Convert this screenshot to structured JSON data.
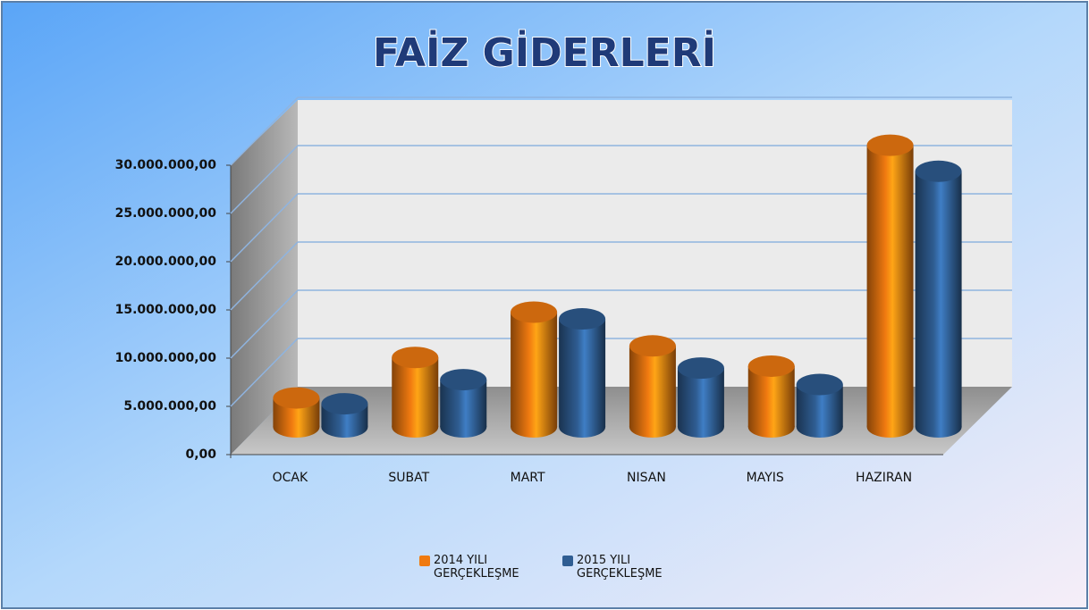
{
  "chart_data": {
    "type": "bar3d",
    "title": "FAİZ GİDERLERİ",
    "categories": [
      "OCAK",
      "SUBAT",
      "MART",
      "NISAN",
      "MAYIS",
      "HAZIRAN"
    ],
    "series": [
      {
        "name": "2014 YILI GERÇEKLEŞME",
        "color": "#f07a10",
        "values": [
          3000000,
          7200000,
          11900000,
          8400000,
          6300000,
          29200000
        ]
      },
      {
        "name": "2015 YILI GERÇEKLEŞME",
        "color": "#2f5d92",
        "values": [
          2400000,
          4900000,
          11200000,
          6100000,
          4400000,
          26500000
        ]
      }
    ],
    "ylim": [
      0,
      30000000
    ],
    "yticks": [
      {
        "value": 0,
        "label": "0,00"
      },
      {
        "value": 5000000,
        "label": "5.000.000,00"
      },
      {
        "value": 10000000,
        "label": "10.000.000,00"
      },
      {
        "value": 15000000,
        "label": "15.000.000,00"
      },
      {
        "value": 20000000,
        "label": "20.000.000,00"
      },
      {
        "value": 25000000,
        "label": "25.000.000,00"
      },
      {
        "value": 30000000,
        "label": "30.000.000,00"
      }
    ],
    "grid": true,
    "legend": "bottom"
  }
}
